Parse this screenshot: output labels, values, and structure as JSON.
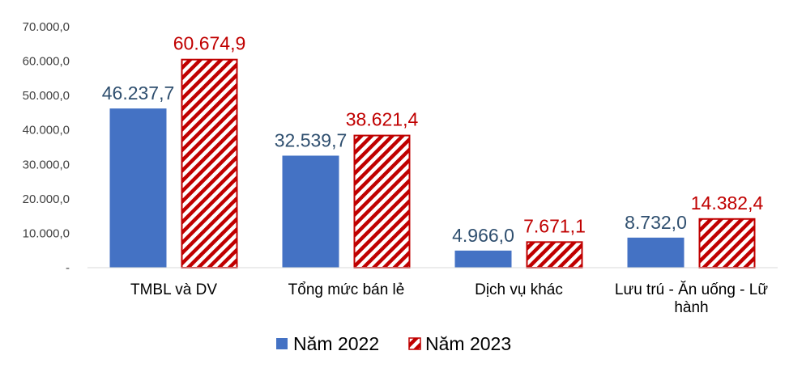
{
  "chart_data": {
    "type": "bar",
    "categories": [
      [
        "TMBL và DV"
      ],
      [
        "Tổng mức bán lẻ"
      ],
      [
        "Dịch vụ khác"
      ],
      [
        "Lưu trú - Ăn uống - Lữ",
        "hành"
      ]
    ],
    "series": [
      {
        "name": "Năm 2022",
        "values": [
          46237.7,
          32539.7,
          4966.0,
          8732.0
        ],
        "labels": [
          "46.237,7",
          "32.539,7",
          "4.966,0",
          "8.732,0"
        ],
        "color": "#4472C4",
        "label_color": "#2F4F6F",
        "pattern": "solid"
      },
      {
        "name": "Năm 2023",
        "values": [
          60674.9,
          38621.4,
          7671.1,
          14382.4
        ],
        "labels": [
          "60.674,9",
          "38.621,4",
          "7.671,1",
          "14.382,4"
        ],
        "color": "#C00000",
        "label_color": "#C00000",
        "pattern": "diagonal-stripes"
      }
    ],
    "ylim": [
      0,
      70000
    ],
    "yticks": [
      0,
      10000,
      20000,
      30000,
      40000,
      50000,
      60000,
      70000
    ],
    "ytick_labels": [
      "-",
      "10.000,0",
      "20.000,0",
      "30.000,0",
      "40.000,0",
      "50.000,0",
      "60.000,0",
      "70.000,0"
    ],
    "grid": false,
    "legend_position": "bottom-center"
  }
}
